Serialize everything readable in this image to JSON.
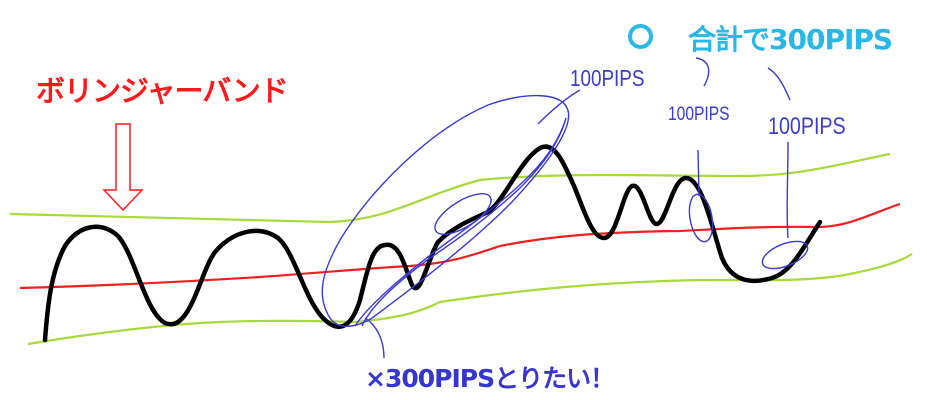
{
  "labels": {
    "bollinger_band": "ボリンジャーバンド",
    "total_circle": "○",
    "total_pips": "合計で300PIPS",
    "pips_a": "100PIPS",
    "pips_b": "100PIPS",
    "pips_c": "100PIPS",
    "wrong_goal": "×300PIPSとりたい！"
  },
  "colors": {
    "title_red": "#ff1a1a",
    "title_cyan": "#27b7e9",
    "annotation_blue": "#3a3ad6",
    "band_outer": "#a8d83a",
    "band_middle": "#f02020",
    "price_line": "#000000"
  }
}
